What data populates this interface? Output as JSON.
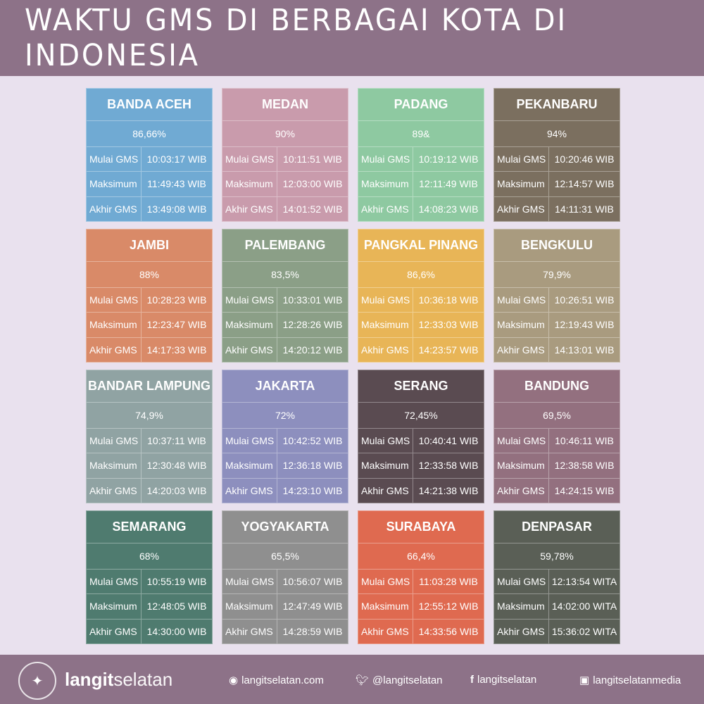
{
  "title": "WAKTU GMS DI BERBAGAI KOTA DI INDONESIA",
  "labels": [
    "Mulai GMS",
    "Maksimum",
    "Akhir GMS"
  ],
  "cities": [
    {
      "name": "BANDA ACEH",
      "pct": "86,66%",
      "times": [
        "10:03:17 WIB",
        "11:49:43 WIB",
        "13:49:08 WIB"
      ],
      "color": "#70aad3"
    },
    {
      "name": "MEDAN",
      "pct": "90%",
      "times": [
        "10:11:51 WIB",
        "12:03:00 WIB",
        "14:01:52 WIB"
      ],
      "color": "#c99bac"
    },
    {
      "name": "PADANG",
      "pct": "89&",
      "times": [
        "10:19:12 WIB",
        "12:11:49 WIB",
        "14:08:23 WIB"
      ],
      "color": "#8ec9a1"
    },
    {
      "name": "PEKANBARU",
      "pct": "94%",
      "times": [
        "10:20:46 WIB",
        "12:14:57 WIB",
        "14:11:31 WIB"
      ],
      "color": "#7b6f5f"
    },
    {
      "name": "JAMBI",
      "pct": "88%",
      "times": [
        "10:28:23 WIB",
        "12:23:47 WIB",
        "14:17:33 WIB"
      ],
      "color": "#d98a68"
    },
    {
      "name": "PALEMBANG",
      "pct": "83,5%",
      "times": [
        "10:33:01 WIB",
        "12:28:26 WIB",
        "14:20:12 WIB"
      ],
      "color": "#8b9f87"
    },
    {
      "name": "PANGKAL PINANG",
      "pct": "86,6%",
      "times": [
        "10:36:18 WIB",
        "12:33:03 WIB",
        "14:23:57 WIB"
      ],
      "color": "#e8b557"
    },
    {
      "name": "BENGKULU",
      "pct": "79,9%",
      "times": [
        "10:26:51 WIB",
        "12:19:43 WIB",
        "14:13:01 WIB"
      ],
      "color": "#a99b7f"
    },
    {
      "name": "BANDAR LAMPUNG",
      "pct": "74,9%",
      "times": [
        "10:37:11 WIB",
        "12:30:48 WIB",
        "14:20:03 WIB"
      ],
      "color": "#90a3a3"
    },
    {
      "name": "JAKARTA",
      "pct": "72%",
      "times": [
        "10:42:52 WIB",
        "12:36:18 WIB",
        "14:23:10 WIB"
      ],
      "color": "#8d8fbe"
    },
    {
      "name": "SERANG",
      "pct": "72,45%",
      "times": [
        "10:40:41 WIB",
        "12:33:58 WIB",
        "14:21:38 WIB"
      ],
      "color": "#5a4b51"
    },
    {
      "name": "BANDUNG",
      "pct": "69,5%",
      "times": [
        "10:46:11 WIB",
        "12:38:58 WIB",
        "14:24:15 WIB"
      ],
      "color": "#93707f"
    },
    {
      "name": "SEMARANG",
      "pct": "68%",
      "times": [
        "10:55:19 WIB",
        "12:48:05 WIB",
        "14:30:00 WIB"
      ],
      "color": "#4f7b6f"
    },
    {
      "name": "YOGYAKARTA",
      "pct": "65,5%",
      "times": [
        "10:56:07 WIB",
        "12:47:49 WIB",
        "14:28:59 WIB"
      ],
      "color": "#8f8f8f"
    },
    {
      "name": "SURABAYA",
      "pct": "66,4%",
      "times": [
        "11:03:28 WIB",
        "12:55:12 WIB",
        "14:33:56 WIB"
      ],
      "color": "#df6a50"
    },
    {
      "name": "DENPASAR",
      "pct": "59,78%",
      "times": [
        "12:13:54 WITA",
        "14:02:00 WITA",
        "15:36:02 WITA"
      ],
      "color": "#5a5f56"
    }
  ],
  "footer": {
    "logo_text": "LANGITSELATAN",
    "brand_bold": "langit",
    "brand_light": "selatan",
    "website": "langitselatan.com",
    "twitter": "@langitselatan",
    "facebook": "langitselatan",
    "instagram": "langitselatanmedia"
  }
}
